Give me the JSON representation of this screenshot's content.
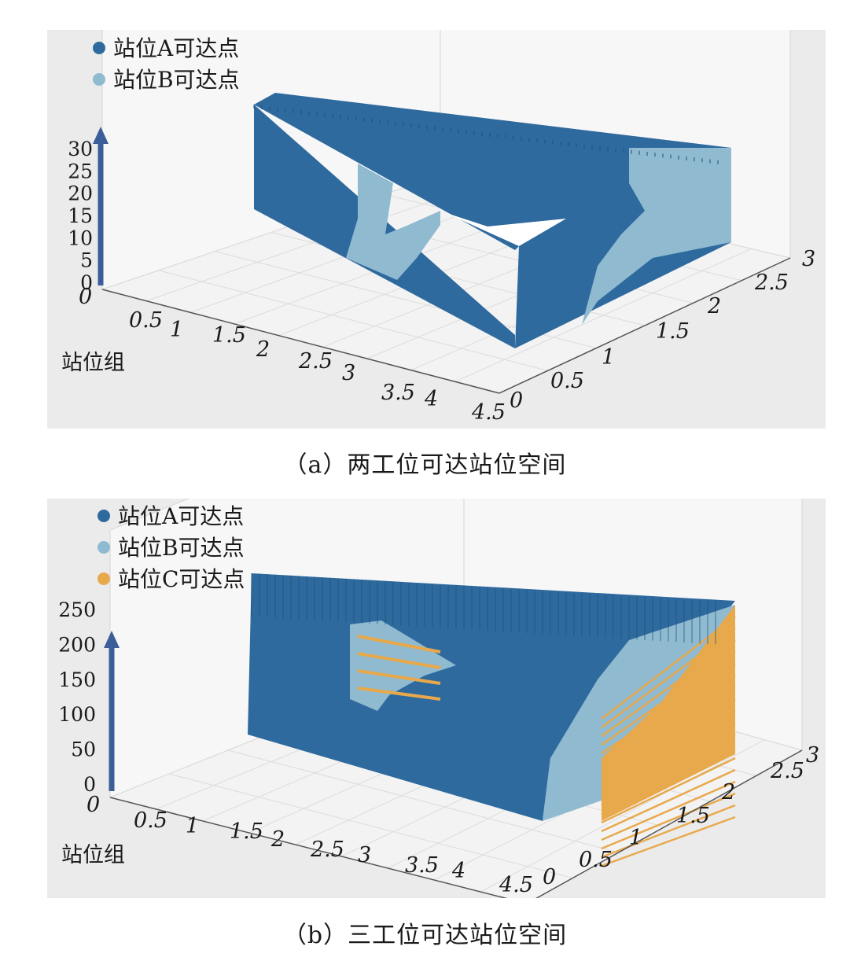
{
  "chart_data": [
    {
      "type": "scatter",
      "subtype": "3d-scatter",
      "caption": "（a）两工位可达站位空间",
      "xlabel": "站位组",
      "x_ticks": [
        "0",
        "0.5",
        "1",
        "1.5",
        "2",
        "2.5",
        "3",
        "3.5",
        "4",
        "4.5"
      ],
      "y_ticks": [
        "0",
        "0.5",
        "1",
        "1.5",
        "2",
        "2.5",
        "3"
      ],
      "z_ticks": [
        "0",
        "5",
        "10",
        "15",
        "20",
        "25",
        "30"
      ],
      "xlim": [
        0,
        4.5
      ],
      "ylim": [
        0,
        3
      ],
      "zlim": [
        0,
        33
      ],
      "legend_position": "top-left",
      "grid": true,
      "series": [
        {
          "name": "站位A可达点",
          "color": "#2f6a9e"
        },
        {
          "name": "站位B可达点",
          "color": "#8fbad0"
        }
      ]
    },
    {
      "type": "scatter",
      "subtype": "3d-scatter",
      "caption": "（b）三工位可达站位空间",
      "xlabel": "站位组",
      "x_ticks": [
        "0",
        "0.5",
        "1",
        "1.5",
        "2",
        "2.5",
        "3",
        "3.5",
        "4",
        "4.5"
      ],
      "y_ticks": [
        "0",
        "0.5",
        "1",
        "1.5",
        "2",
        "2.5",
        "3"
      ],
      "z_ticks": [
        "0",
        "50",
        "100",
        "150",
        "200",
        "250"
      ],
      "xlim": [
        0,
        4.5
      ],
      "ylim": [
        0,
        3
      ],
      "zlim": [
        0,
        250
      ],
      "legend_position": "top-left",
      "grid": true,
      "series": [
        {
          "name": "站位A可达点",
          "color": "#2f6a9e"
        },
        {
          "name": "站位B可达点",
          "color": "#8fbad0"
        },
        {
          "name": "站位C可达点",
          "color": "#e8a94c"
        }
      ]
    }
  ]
}
